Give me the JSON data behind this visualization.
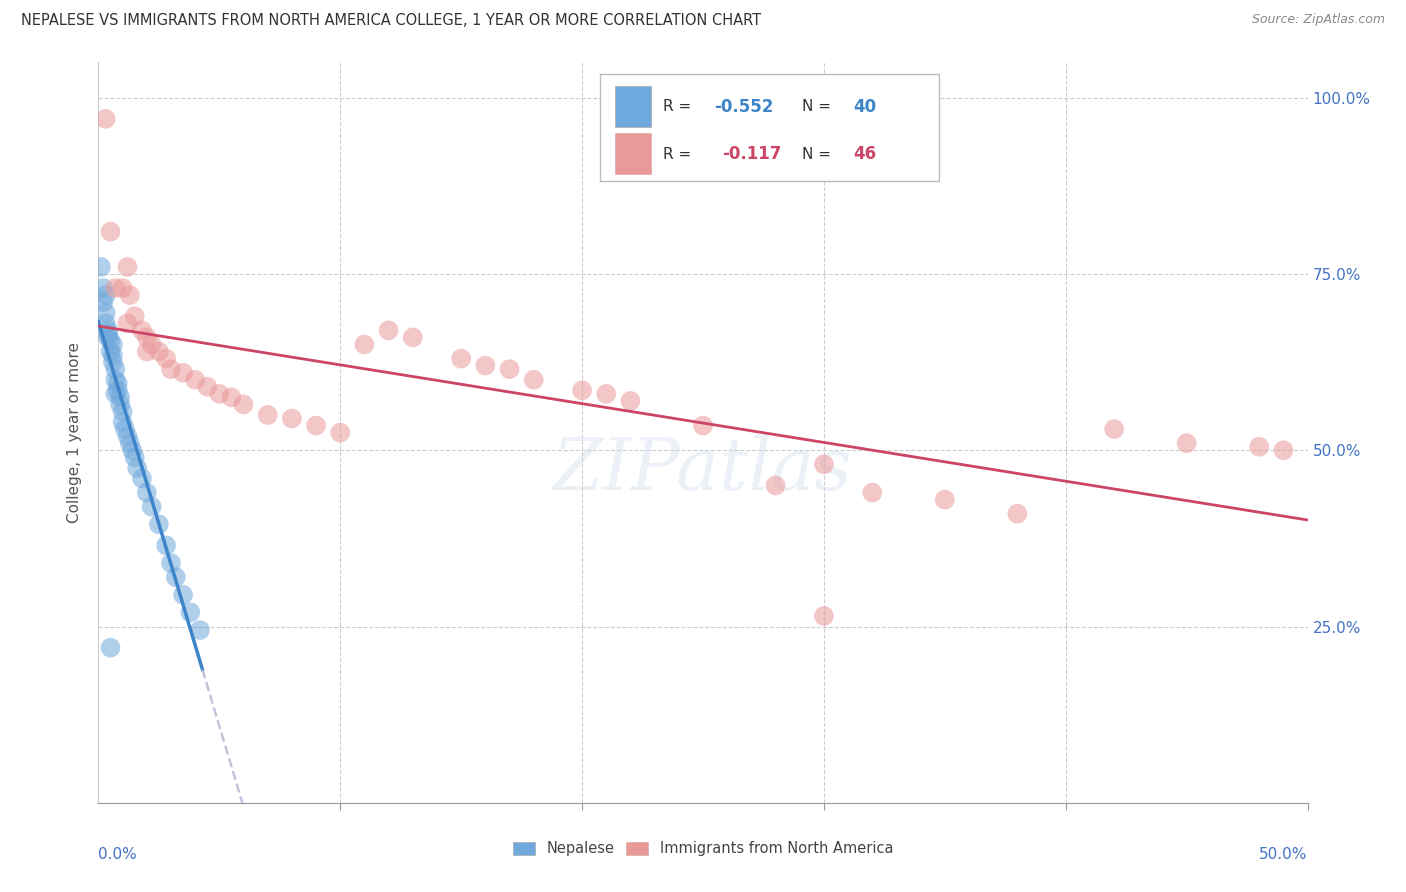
{
  "title": "NEPALESE VS IMMIGRANTS FROM NORTH AMERICA COLLEGE, 1 YEAR OR MORE CORRELATION CHART",
  "source": "Source: ZipAtlas.com",
  "ylabel": "College, 1 year or more",
  "legend_label1": "Nepalese",
  "legend_label2": "Immigrants from North America",
  "R1": "-0.552",
  "N1": "40",
  "R2": "-0.117",
  "N2": "46",
  "color_blue": "#6fa8dc",
  "color_pink": "#ea9999",
  "color_blue_line": "#3d85c8",
  "color_pink_line": "#cc4466",
  "xmin": 0.0,
  "xmax": 0.5,
  "ymin": 0.0,
  "ymax": 1.05,
  "blue_x": [
    0.001,
    0.002,
    0.002,
    0.003,
    0.003,
    0.004,
    0.004,
    0.005,
    0.005,
    0.006,
    0.006,
    0.007,
    0.007,
    0.008,
    0.008,
    0.009,
    0.009,
    0.01,
    0.01,
    0.011,
    0.012,
    0.013,
    0.014,
    0.015,
    0.016,
    0.018,
    0.02,
    0.022,
    0.025,
    0.028,
    0.03,
    0.032,
    0.035,
    0.038,
    0.042,
    0.003,
    0.004,
    0.006,
    0.007,
    0.005
  ],
  "blue_y": [
    0.76,
    0.73,
    0.71,
    0.695,
    0.68,
    0.67,
    0.66,
    0.655,
    0.64,
    0.635,
    0.625,
    0.615,
    0.6,
    0.595,
    0.585,
    0.575,
    0.565,
    0.555,
    0.54,
    0.53,
    0.52,
    0.51,
    0.5,
    0.49,
    0.475,
    0.46,
    0.44,
    0.42,
    0.395,
    0.365,
    0.34,
    0.32,
    0.295,
    0.27,
    0.245,
    0.72,
    0.665,
    0.65,
    0.58,
    0.22
  ],
  "pink_x": [
    0.003,
    0.005,
    0.007,
    0.01,
    0.012,
    0.013,
    0.015,
    0.018,
    0.02,
    0.022,
    0.025,
    0.028,
    0.03,
    0.035,
    0.04,
    0.045,
    0.05,
    0.055,
    0.06,
    0.07,
    0.08,
    0.09,
    0.1,
    0.11,
    0.12,
    0.13,
    0.15,
    0.16,
    0.17,
    0.18,
    0.2,
    0.21,
    0.22,
    0.25,
    0.28,
    0.3,
    0.32,
    0.35,
    0.38,
    0.42,
    0.45,
    0.48,
    0.49,
    0.012,
    0.02,
    0.3
  ],
  "pink_y": [
    0.97,
    0.81,
    0.73,
    0.73,
    0.76,
    0.72,
    0.69,
    0.67,
    0.66,
    0.65,
    0.64,
    0.63,
    0.615,
    0.61,
    0.6,
    0.59,
    0.58,
    0.575,
    0.565,
    0.55,
    0.545,
    0.535,
    0.525,
    0.65,
    0.67,
    0.66,
    0.63,
    0.62,
    0.615,
    0.6,
    0.585,
    0.58,
    0.57,
    0.535,
    0.45,
    0.48,
    0.44,
    0.43,
    0.41,
    0.53,
    0.51,
    0.505,
    0.5,
    0.68,
    0.64,
    0.265
  ],
  "watermark": "ZIPatlas"
}
